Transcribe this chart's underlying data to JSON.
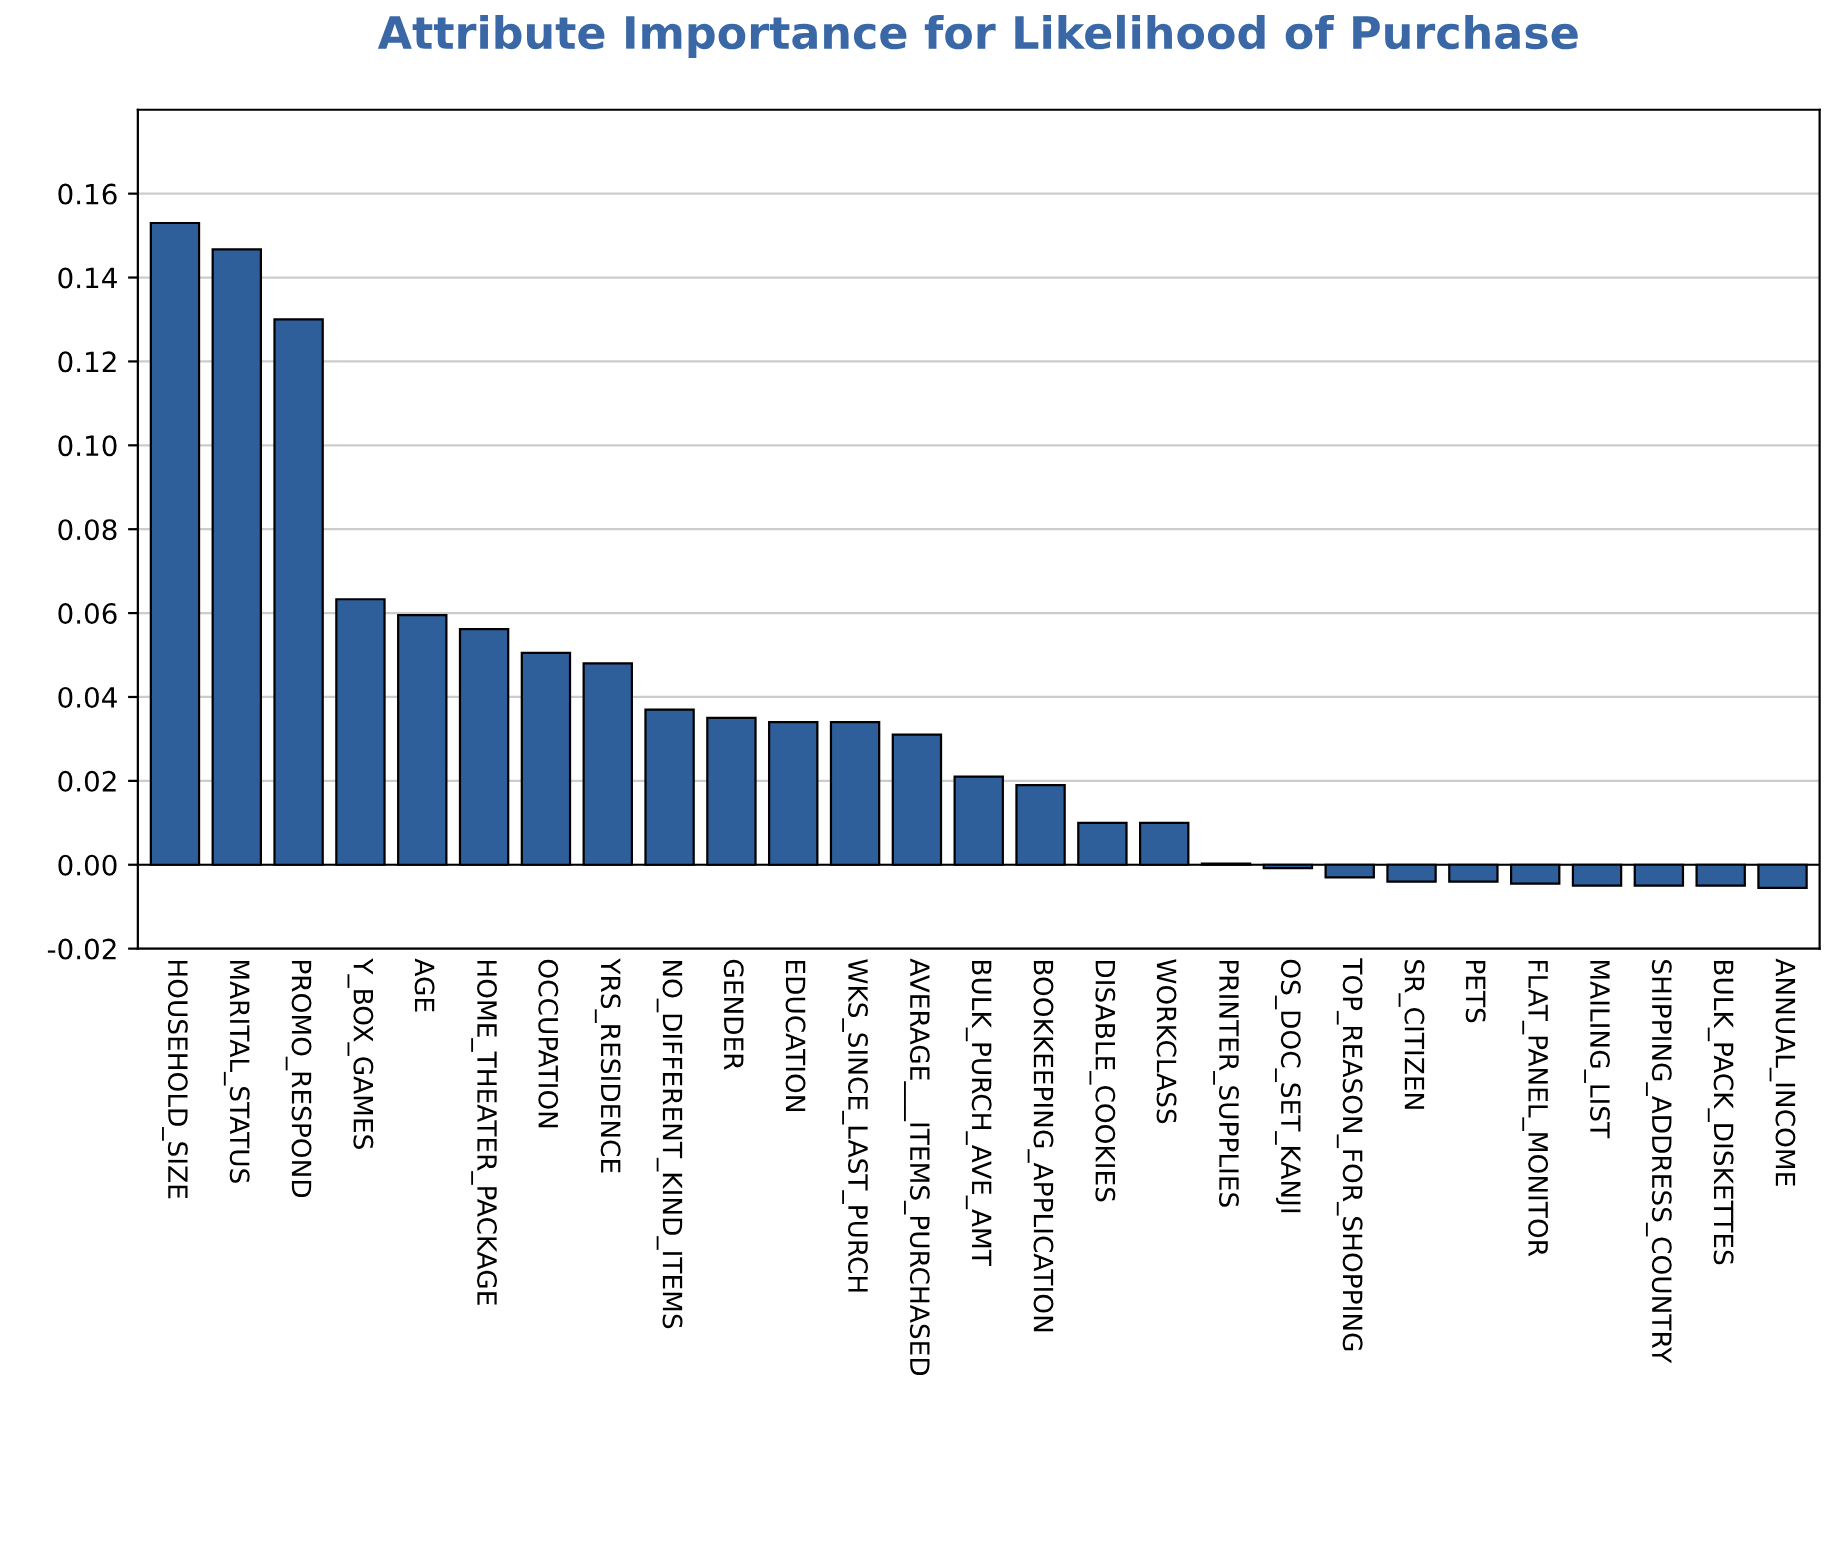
{
  "chart_data": {
    "type": "bar",
    "title": "Attribute Importance for Likelihood of Purchase",
    "categories": [
      "HOUSEHOLD_SIZE",
      "MARITAL_STATUS",
      "PROMO_RESPOND",
      "Y_BOX_GAMES",
      "AGE",
      "HOME_THEATER_PACKAGE",
      "OCCUPATION",
      "YRS_RESIDENCE",
      "NO_DIFFERENT_KIND_ITEMS",
      "GENDER",
      "EDUCATION",
      "WKS_SINCE_LAST_PURCH",
      "AVERAGE___ITEMS_PURCHASED",
      "BULK_PURCH_AVE_AMT",
      "BOOKKEEPING_APPLICATION",
      "DISABLE_COOKIES",
      "WORKCLASS",
      "PRINTER_SUPPLIES",
      "OS_DOC_SET_KANJI",
      "TOP_REASON_FOR_SHOPPING",
      "SR_CITIZEN",
      "PETS",
      "FLAT_PANEL_MONITOR",
      "MAILING_LIST",
      "SHIPPING_ADDRESS_COUNTRY",
      "BULK_PACK_DISKETTES",
      "ANNUAL_INCOME"
    ],
    "values": [
      0.153,
      0.1467,
      0.13,
      0.0633,
      0.0595,
      0.0562,
      0.0505,
      0.048,
      0.037,
      0.035,
      0.034,
      0.034,
      0.031,
      0.021,
      0.019,
      0.01,
      0.01,
      0.0003,
      -0.0008,
      -0.003,
      -0.004,
      -0.004,
      -0.0045,
      -0.005,
      -0.005,
      -0.005,
      -0.0055
    ],
    "color": "#2f5f9a",
    "ylim": [
      -0.02,
      0.18
    ],
    "yticks": [
      {
        "value": -0.02,
        "label": "-0.02"
      },
      {
        "value": 0,
        "label": "0.00"
      },
      {
        "value": 0.02,
        "label": "0.02"
      },
      {
        "value": 0.04,
        "label": "0.04"
      },
      {
        "value": 0.06,
        "label": "0.06"
      },
      {
        "value": 0.08,
        "label": "0.08"
      },
      {
        "value": 0.1,
        "label": "0.10"
      },
      {
        "value": 0.12,
        "label": "0.12"
      },
      {
        "value": 0.14,
        "label": "0.14"
      },
      {
        "value": 0.16,
        "label": "0.16"
      }
    ],
    "grid": "y"
  }
}
